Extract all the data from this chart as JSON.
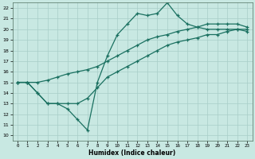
{
  "xlabel": "Humidex (Indice chaleur)",
  "xlim": [
    -0.5,
    23.5
  ],
  "ylim": [
    9.5,
    22.5
  ],
  "xticks": [
    0,
    1,
    2,
    3,
    4,
    5,
    6,
    7,
    8,
    9,
    10,
    11,
    12,
    13,
    14,
    15,
    16,
    17,
    18,
    19,
    20,
    21,
    22,
    23
  ],
  "yticks": [
    10,
    11,
    12,
    13,
    14,
    15,
    16,
    17,
    18,
    19,
    20,
    21,
    22
  ],
  "bg_color": "#c8e8e2",
  "grid_color": "#a8cec8",
  "line_color": "#1a7060",
  "line_zigzag": {
    "x": [
      0,
      1,
      2,
      3,
      4,
      5,
      6,
      7,
      8,
      9,
      10,
      11,
      12,
      13,
      14,
      15,
      16,
      17,
      18,
      19,
      20,
      21,
      22,
      23
    ],
    "y": [
      15,
      15,
      14,
      13,
      13,
      12.5,
      11.5,
      10.5,
      15,
      17.5,
      19.5,
      20.5,
      21.5,
      21.3,
      21.5,
      22.5,
      21.3,
      20.5,
      20.2,
      20,
      20,
      20,
      20,
      19.8
    ]
  },
  "line_lower": {
    "x": [
      0,
      1,
      2,
      3,
      4,
      5,
      6,
      7,
      8,
      9,
      10,
      11,
      12,
      13,
      14,
      15,
      16,
      17,
      18,
      19,
      20,
      21,
      22,
      23
    ],
    "y": [
      15.0,
      15.0,
      14.0,
      13.0,
      13.0,
      13.0,
      13.0,
      13.5,
      14.5,
      15.5,
      16.0,
      16.5,
      17.0,
      17.5,
      18.0,
      18.5,
      18.8,
      19.0,
      19.2,
      19.5,
      19.5,
      19.8,
      20.0,
      20.0
    ]
  },
  "line_upper": {
    "x": [
      0,
      1,
      2,
      3,
      4,
      5,
      6,
      7,
      8,
      9,
      10,
      11,
      12,
      13,
      14,
      15,
      16,
      17,
      18,
      19,
      20,
      21,
      22,
      23
    ],
    "y": [
      15.0,
      15.0,
      15.0,
      15.2,
      15.5,
      15.8,
      16.0,
      16.2,
      16.5,
      17.0,
      17.5,
      18.0,
      18.5,
      19.0,
      19.3,
      19.5,
      19.8,
      20.0,
      20.2,
      20.5,
      20.5,
      20.5,
      20.5,
      20.2
    ]
  }
}
